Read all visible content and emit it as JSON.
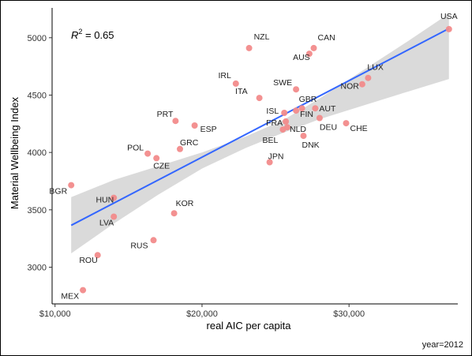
{
  "chart_data": {
    "type": "scatter",
    "xlabel": "real AIC per capita",
    "ylabel": "Material Wellbeing Index",
    "caption": "year=2012",
    "annotation": {
      "lhs": "R",
      "sup": "2",
      "rhs": " = 0.65"
    },
    "xlim": [
      9800,
      37400
    ],
    "ylim": [
      2680,
      5260
    ],
    "x_ticks": [
      10000,
      20000,
      30000
    ],
    "x_tick_labels": [
      "$10,000",
      "$20,000",
      "$30,000"
    ],
    "y_ticks": [
      3000,
      3500,
      4000,
      4500,
      5000
    ],
    "y_tick_labels": [
      "3000",
      "3500",
      "4000",
      "4500",
      "5000"
    ],
    "trend": {
      "x": [
        11100,
        36800
      ],
      "y": [
        3365,
        5080
      ]
    },
    "ci_band": {
      "x": [
        11100,
        14000,
        17000,
        20000,
        23000,
        25500,
        28000,
        31000,
        34000,
        36800
      ],
      "lower": [
        3120,
        3380,
        3630,
        3860,
        4040,
        4170,
        4290,
        4410,
        4530,
        4640
      ],
      "upper": [
        3610,
        3760,
        3880,
        4000,
        4140,
        4280,
        4470,
        4720,
        4970,
        5210
      ]
    },
    "points": [
      {
        "label": "USA",
        "x": 36800,
        "y": 5075
      },
      {
        "label": "NZL",
        "x": 23200,
        "y": 4910
      },
      {
        "label": "CAN",
        "x": 27600,
        "y": 4910
      },
      {
        "label": "AUS",
        "x": 27300,
        "y": 4860
      },
      {
        "label": "LUX",
        "x": 31300,
        "y": 4650
      },
      {
        "label": "IRL",
        "x": 22300,
        "y": 4600
      },
      {
        "label": "NOR",
        "x": 30900,
        "y": 4595
      },
      {
        "label": "SWE",
        "x": 26400,
        "y": 4550
      },
      {
        "label": "ITA",
        "x": 23900,
        "y": 4475
      },
      {
        "label": "GBR",
        "x": 26800,
        "y": 4385
      },
      {
        "label": "AUT",
        "x": 27700,
        "y": 4385
      },
      {
        "label": "ISL",
        "x": 25600,
        "y": 4345
      },
      {
        "label": "FIN",
        "x": 26400,
        "y": 4365
      },
      {
        "label": "DEU",
        "x": 28000,
        "y": 4300
      },
      {
        "label": "PRT",
        "x": 18200,
        "y": 4275
      },
      {
        "label": "CHE",
        "x": 29800,
        "y": 4255
      },
      {
        "label": "FRA",
        "x": 25700,
        "y": 4270
      },
      {
        "label": "ESP",
        "x": 19500,
        "y": 4235
      },
      {
        "label": "NLD",
        "x": 25800,
        "y": 4220
      },
      {
        "label": "BEL",
        "x": 25500,
        "y": 4200
      },
      {
        "label": "DNK",
        "x": 26900,
        "y": 4145
      },
      {
        "label": "GRC",
        "x": 18500,
        "y": 4030
      },
      {
        "label": "POL",
        "x": 16300,
        "y": 3990
      },
      {
        "label": "CZE",
        "x": 16900,
        "y": 3950
      },
      {
        "label": "JPN",
        "x": 24600,
        "y": 3915
      },
      {
        "label": "BGR",
        "x": 11100,
        "y": 3715
      },
      {
        "label": "HUN",
        "x": 14000,
        "y": 3605
      },
      {
        "label": "KOR",
        "x": 18100,
        "y": 3470
      },
      {
        "label": "LVA",
        "x": 14000,
        "y": 3440
      },
      {
        "label": "RUS",
        "x": 16700,
        "y": 3235
      },
      {
        "label": "ROU",
        "x": 12900,
        "y": 3105
      },
      {
        "label": "MEX",
        "x": 11900,
        "y": 2800
      }
    ]
  }
}
